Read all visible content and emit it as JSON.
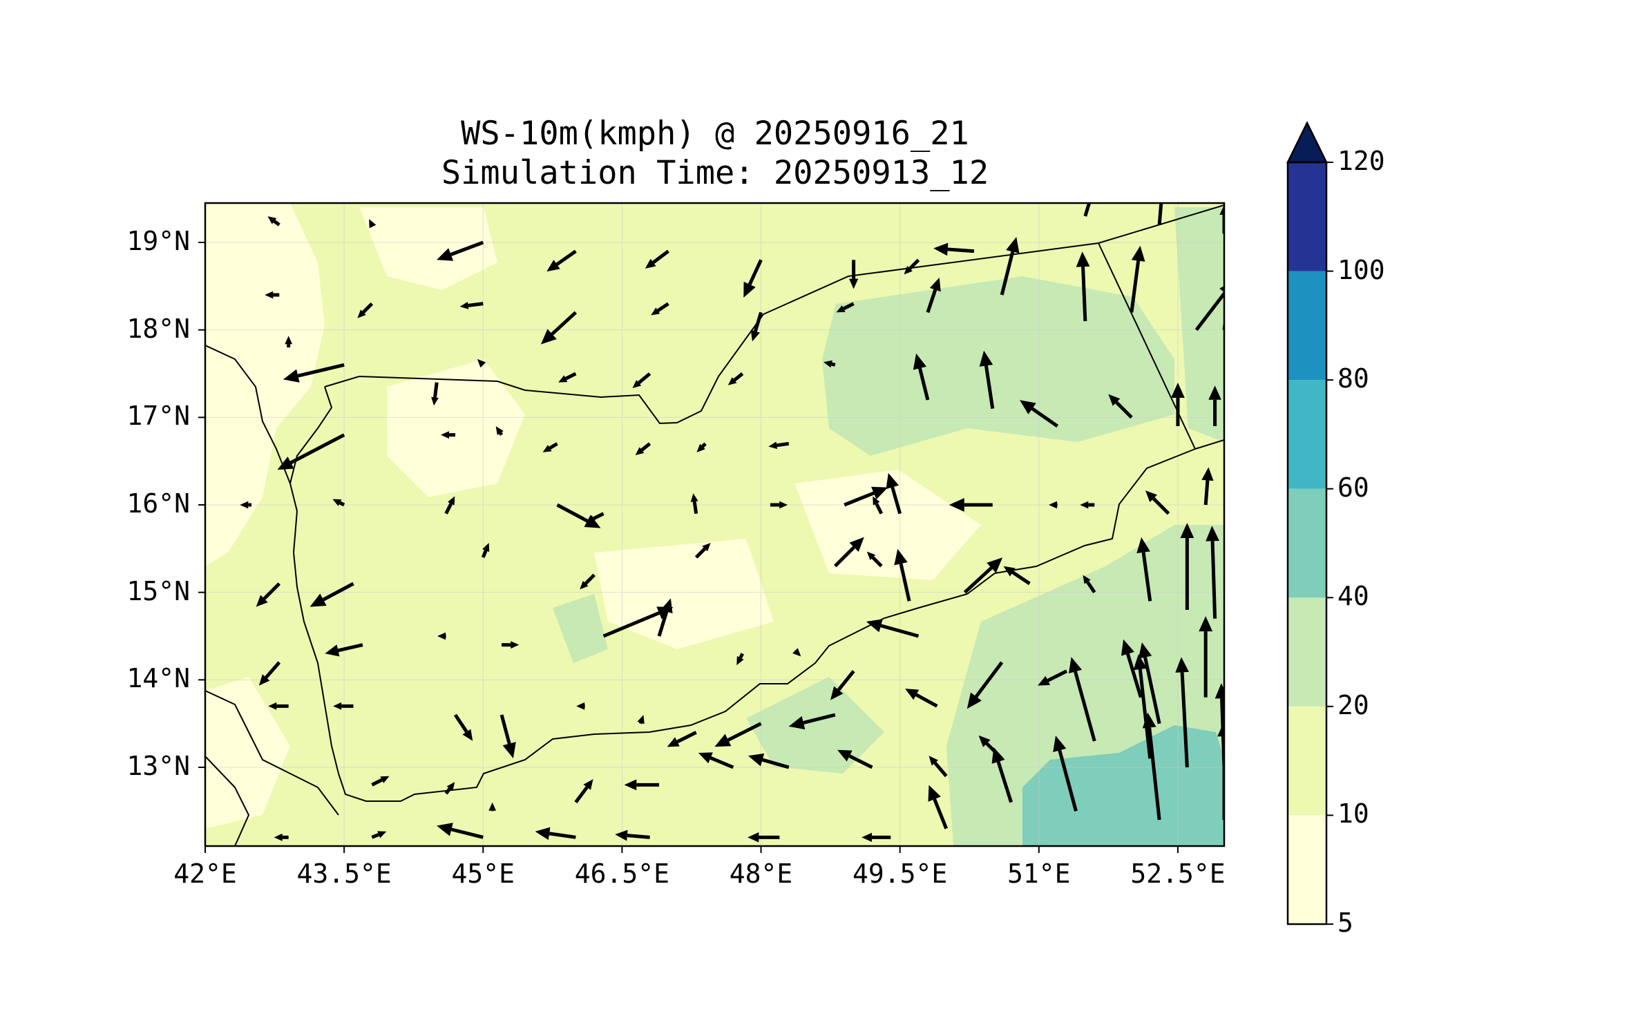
{
  "title": {
    "line1": "WS-10m(kmph) @ 20250916_21",
    "line2": "Simulation Time: 20250913_12"
  },
  "map": {
    "lon_range": [
      42.0,
      53.0
    ],
    "lat_range": [
      12.1,
      19.45
    ],
    "background_color": "#f7fcc6",
    "land_outline_color": "#000000"
  },
  "axes": {
    "lat_ticks": [
      "19°N",
      "18°N",
      "17°N",
      "16°N",
      "15°N",
      "14°N",
      "13°N"
    ],
    "lon_ticks": [
      "42°E",
      "43.5°E",
      "45°E",
      "46.5°E",
      "48°E",
      "49.5°E",
      "51°E",
      "52.5°E"
    ]
  },
  "colorbar": {
    "levels": [
      "5",
      "10",
      "20",
      "40",
      "60",
      "80",
      "100",
      "120"
    ],
    "colors": [
      "#ffffd9",
      "#edf8b1",
      "#c7e9b4",
      "#7fcdbb",
      "#41b6c4",
      "#1d91c0",
      "#253494",
      "#081d58"
    ],
    "extend": "max"
  },
  "wind_vectors": {
    "color": "#000000",
    "units": "kmph"
  }
}
